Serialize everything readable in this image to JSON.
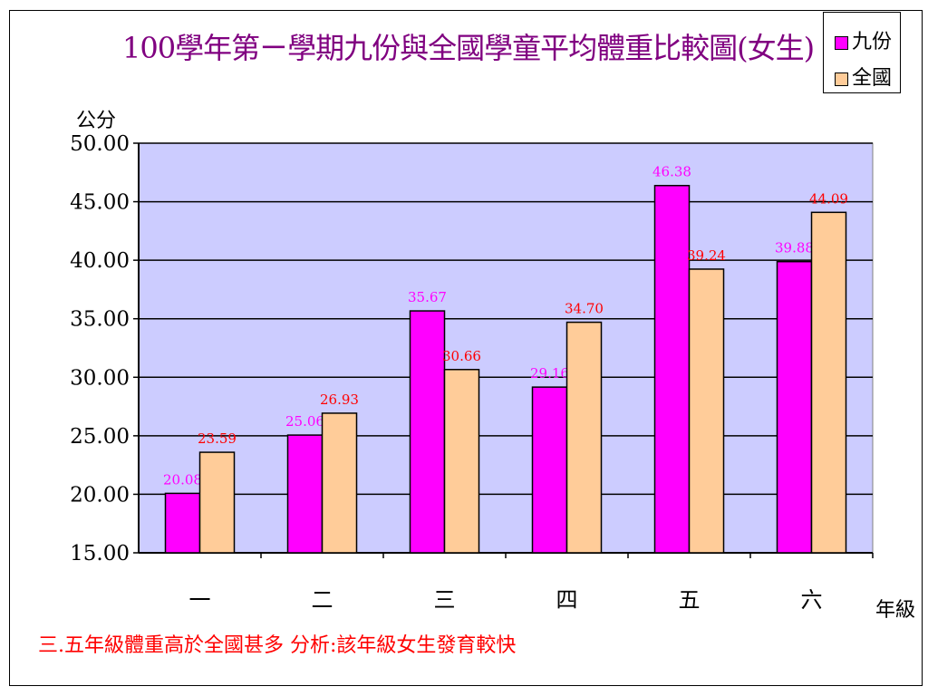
{
  "chart_data": {
    "type": "bar",
    "title": "100學年第ㄧ學期九份與全國學童平均體重比較圖(女生)",
    "ylabel": "公分",
    "xlabel": "年級",
    "categories": [
      "一",
      "二",
      "三",
      "四",
      "五",
      "六"
    ],
    "series": [
      {
        "name": "九份",
        "color": "#ff00ff",
        "label_color": "#ff00ff",
        "values": [
          20.08,
          25.06,
          35.67,
          29.16,
          46.38,
          39.88
        ],
        "labels": [
          "20.08",
          "25.06",
          "35.67",
          "29.16",
          "46.38",
          "39.88"
        ]
      },
      {
        "name": "全國",
        "color": "#ffcc99",
        "label_color": "#ff0000",
        "values": [
          23.59,
          26.93,
          30.66,
          34.7,
          39.24,
          44.09
        ],
        "labels": [
          "23.59",
          "26.93",
          "30.66",
          "34.70",
          "39.24",
          "44.09"
        ]
      }
    ],
    "ylim": [
      15,
      50
    ],
    "yticks": [
      "15.00",
      "20.00",
      "25.00",
      "30.00",
      "35.00",
      "40.00",
      "45.00",
      "50.00"
    ],
    "grid": true,
    "legend": "top-right",
    "plot_background": "#ccccff"
  },
  "note": "三.五年級體重高於全國甚多  分析:該年級女生發育較快"
}
